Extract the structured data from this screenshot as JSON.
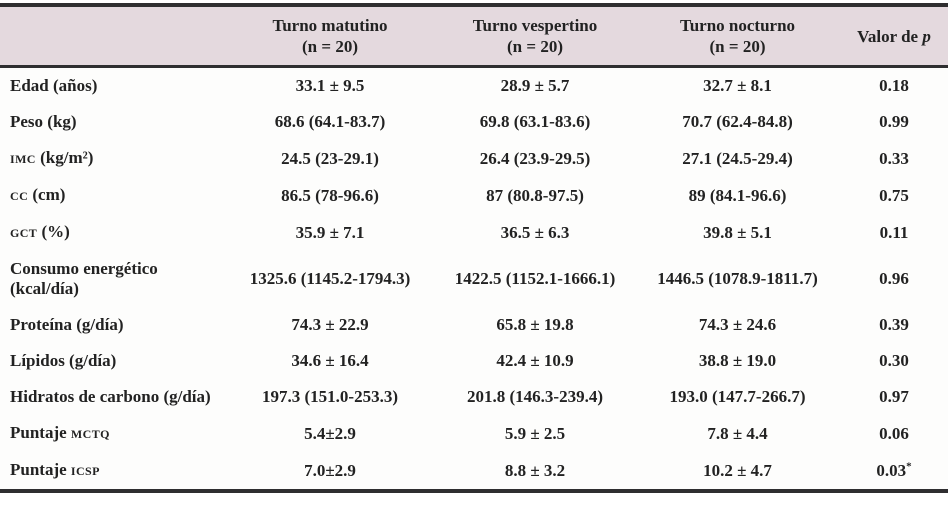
{
  "colors": {
    "header_bg": "#e4d9de",
    "rule": "#2f2e30",
    "text": "#222222",
    "body_bg": "#fdfdfc"
  },
  "table": {
    "header": {
      "columns": [
        {
          "title": "Turno matutino",
          "n": "(n = 20)"
        },
        {
          "title": "Turno vespertino",
          "n": "(n = 20)"
        },
        {
          "title": "Turno nocturno",
          "n": "(n = 20)"
        }
      ],
      "p_prefix": "Valor de ",
      "p_italic": "p"
    },
    "rows": [
      {
        "label": [
          {
            "text": "Edad (años)"
          }
        ],
        "values": [
          "33.1 ± 9.5",
          "28.9 ± 5.7",
          "32.7 ± 8.1"
        ],
        "p": "0.18"
      },
      {
        "label": [
          {
            "text": "Peso (kg)"
          }
        ],
        "values": [
          "68.6 (64.1-83.7)",
          "69.8 (63.1-83.6)",
          "70.7 (62.4-84.8)"
        ],
        "p": "0.99"
      },
      {
        "label": [
          {
            "text": "IMC",
            "sc": true
          },
          {
            "text": " (kg/m²)"
          }
        ],
        "values": [
          "24.5 (23-29.1)",
          "26.4 (23.9-29.5)",
          "27.1 (24.5-29.4)"
        ],
        "p": "0.33"
      },
      {
        "label": [
          {
            "text": "CC",
            "sc": true
          },
          {
            "text": " (cm)"
          }
        ],
        "values": [
          "86.5 (78-96.6)",
          "87 (80.8-97.5)",
          "89 (84.1-96.6)"
        ],
        "p": "0.75"
      },
      {
        "label": [
          {
            "text": "GCT",
            "sc": true
          },
          {
            "text": " (%)"
          }
        ],
        "values": [
          "35.9 ± 7.1",
          "36.5 ± 6.3",
          "39.8 ± 5.1"
        ],
        "p": "0.11"
      },
      {
        "label": [
          {
            "text": "Consumo energético (kcal/día)"
          }
        ],
        "values": [
          "1325.6 (1145.2-1794.3)",
          "1422.5 (1152.1-1666.1)",
          "1446.5 (1078.9-1811.7)"
        ],
        "p": "0.96"
      },
      {
        "label": [
          {
            "text": "Proteína (g/día)"
          }
        ],
        "values": [
          "74.3 ± 22.9",
          "65.8 ± 19.8",
          "74.3 ± 24.6"
        ],
        "p": "0.39"
      },
      {
        "label": [
          {
            "text": "Lípidos (g/día)"
          }
        ],
        "values": [
          "34.6 ± 16.4",
          "42.4 ± 10.9",
          "38.8 ± 19.0"
        ],
        "p": "0.30"
      },
      {
        "label": [
          {
            "text": "Hidratos de carbono (g/día)"
          }
        ],
        "values": [
          "197.3 (151.0-253.3)",
          "201.8 (146.3-239.4)",
          "193.0 (147.7-266.7)"
        ],
        "p": "0.97"
      },
      {
        "label": [
          {
            "text": "Puntaje "
          },
          {
            "text": "MCTQ",
            "sc": true
          }
        ],
        "values": [
          "5.4±2.9",
          "5.9 ± 2.5",
          "7.8 ± 4.4"
        ],
        "p": "0.06"
      },
      {
        "label": [
          {
            "text": "Puntaje "
          },
          {
            "text": "ICSP",
            "sc": true
          }
        ],
        "values": [
          "7.0±2.9",
          "8.8 ± 3.2",
          "10.2 ± 4.7"
        ],
        "p": "0.03",
        "p_sup": "*"
      }
    ]
  }
}
